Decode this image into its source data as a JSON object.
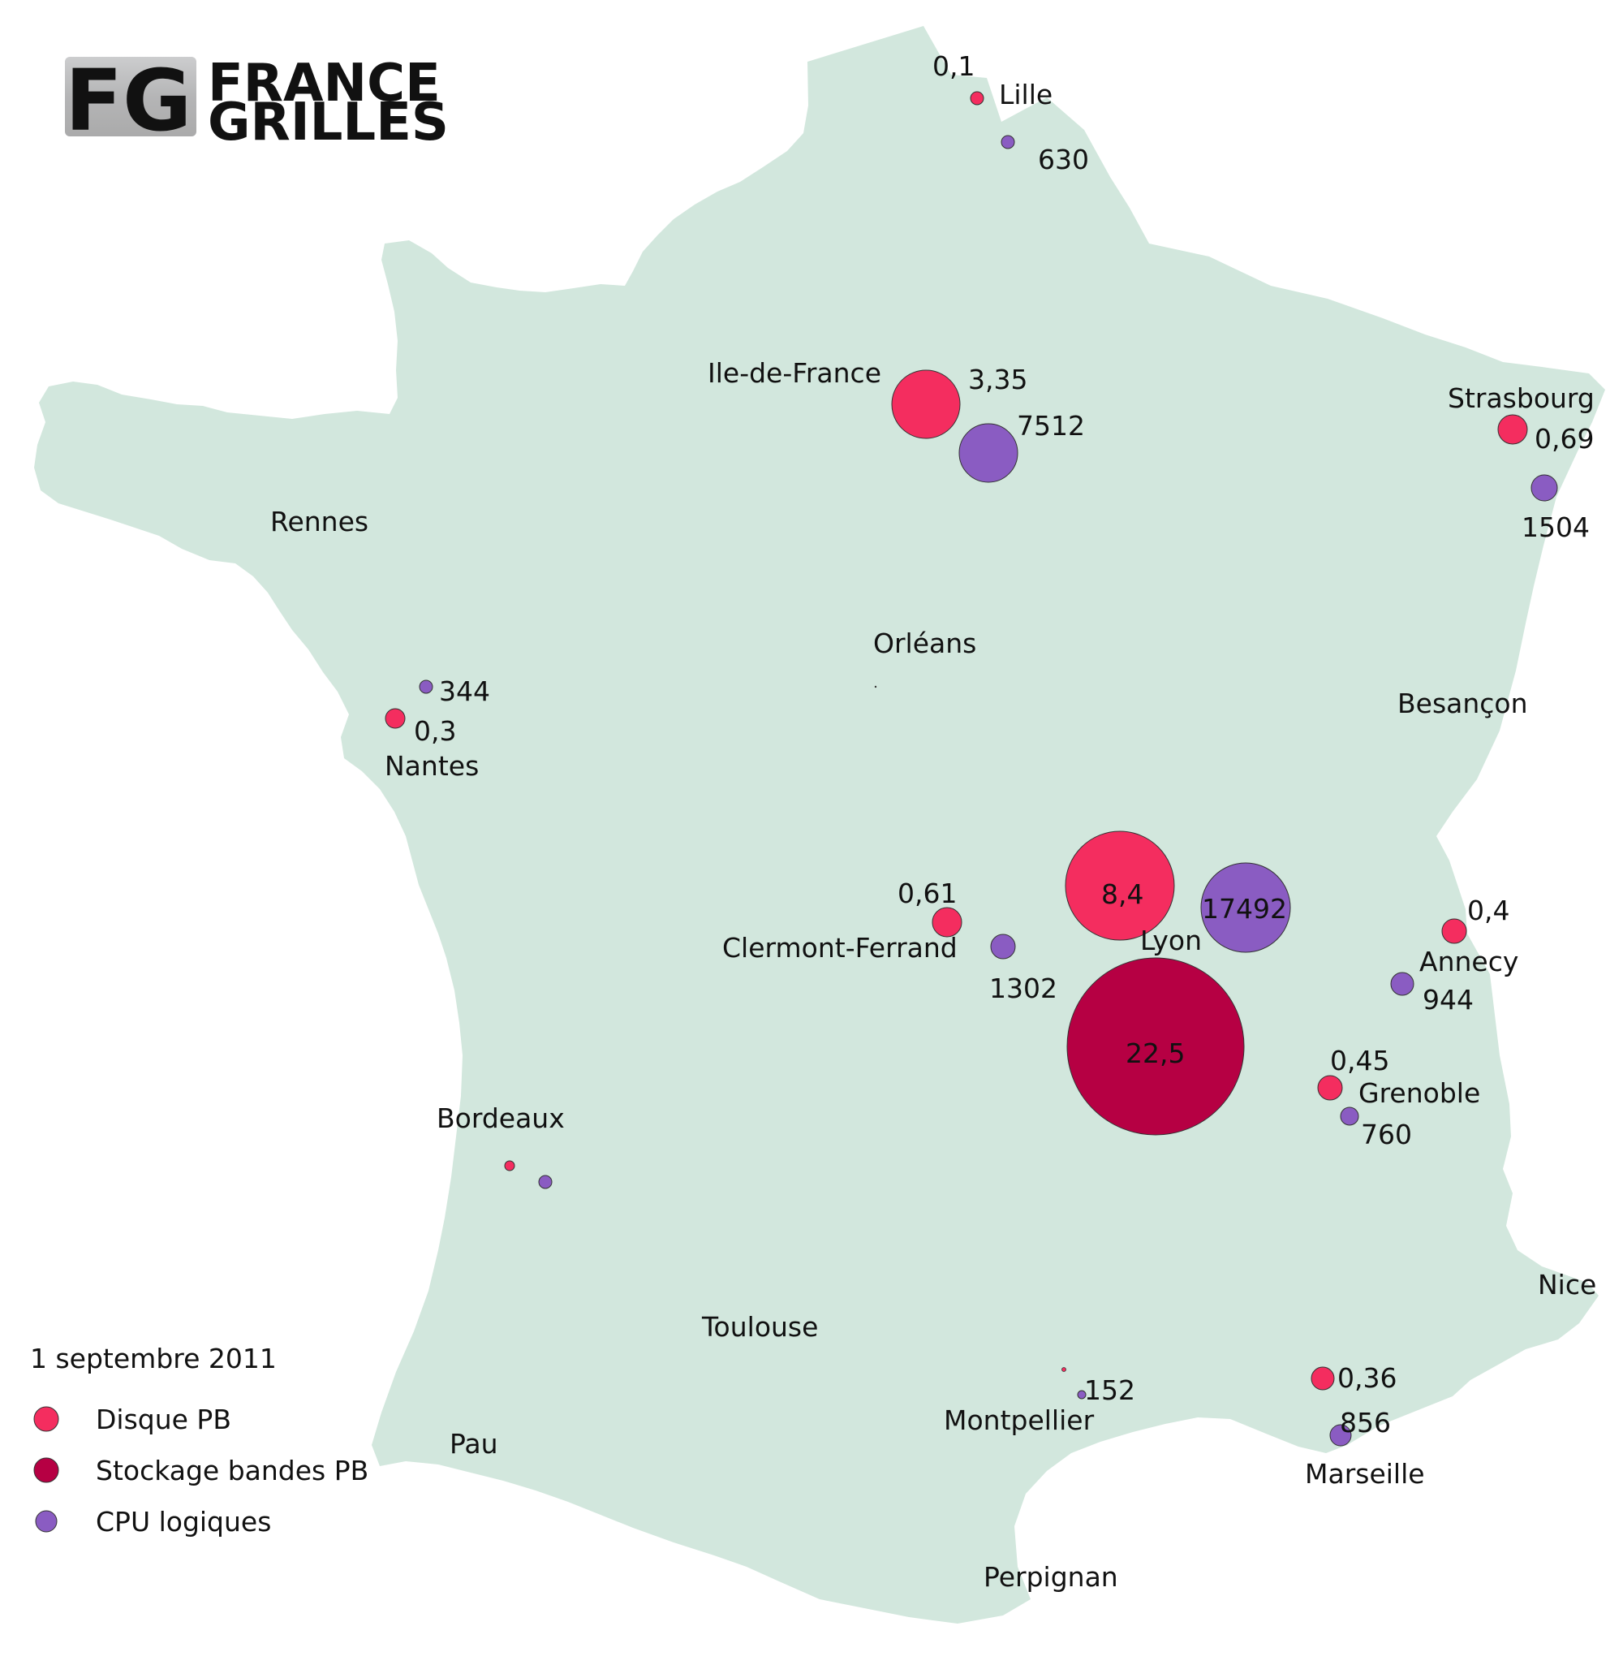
{
  "logo": {
    "monogram": "FG",
    "line1": "FRANCE",
    "line2": "GRILLES"
  },
  "date": "1 septembre 2011",
  "colors": {
    "land": "#d2e7dd",
    "disk": "#f42d5f",
    "tape": "#b60043",
    "cpu": "#8a5cc2"
  },
  "legend": [
    {
      "label": "Disque PB",
      "color": "#f42d5f"
    },
    {
      "label": "Stockage bandes PB",
      "color": "#b60043"
    },
    {
      "label": "CPU logiques",
      "color": "#8a5cc2"
    }
  ],
  "cities": [
    "Lille",
    "Ile-de-France",
    "Strasbourg",
    "Rennes",
    "Orléans",
    "Besançon",
    "Nantes",
    "Clermont-Ferrand",
    "Lyon",
    "Annecy",
    "Grenoble",
    "Bordeaux",
    "Toulouse",
    "Nice",
    "Montpellier",
    "Pau",
    "Marseille",
    "Perpignan"
  ],
  "chart_data": {
    "type": "proportional-symbol-map",
    "series": [
      {
        "name": "Disque PB",
        "values": [
          {
            "site": "Lille",
            "value": 0.1,
            "label": "0,1"
          },
          {
            "site": "Ile-de-France",
            "value": 3.35,
            "label": "3,35"
          },
          {
            "site": "Strasbourg",
            "value": 0.69,
            "label": "0,69"
          },
          {
            "site": "Nantes",
            "value": 0.3,
            "label": "0,3"
          },
          {
            "site": "Clermont-Ferrand",
            "value": 0.61,
            "label": "0,61"
          },
          {
            "site": "Lyon",
            "value": 8.4,
            "label": "8,4"
          },
          {
            "site": "Annecy",
            "value": 0.4,
            "label": "0,4"
          },
          {
            "site": "Grenoble",
            "value": 0.45,
            "label": "0,45"
          },
          {
            "site": "Marseille",
            "value": 0.36,
            "label": "0,36"
          },
          {
            "site": "Bordeaux",
            "value": null,
            "label": ""
          },
          {
            "site": "Montpellier",
            "value": null,
            "label": ""
          }
        ]
      },
      {
        "name": "Stockage bandes PB",
        "values": [
          {
            "site": "Lyon",
            "value": 22.5,
            "label": "22,5"
          }
        ]
      },
      {
        "name": "CPU logiques",
        "values": [
          {
            "site": "Lille",
            "value": 630,
            "label": "630"
          },
          {
            "site": "Ile-de-France",
            "value": 7512,
            "label": "7512"
          },
          {
            "site": "Strasbourg",
            "value": 1504,
            "label": "1504"
          },
          {
            "site": "Nantes",
            "value": 344,
            "label": "344"
          },
          {
            "site": "Clermont-Ferrand",
            "value": 1302,
            "label": "1302"
          },
          {
            "site": "Lyon",
            "value": 17492,
            "label": "17492"
          },
          {
            "site": "Annecy",
            "value": 944,
            "label": "944"
          },
          {
            "site": "Grenoble",
            "value": 760,
            "label": "760"
          },
          {
            "site": "Montpellier",
            "value": 152,
            "label": "152"
          },
          {
            "site": "Marseille",
            "value": 856,
            "label": "856"
          },
          {
            "site": "Bordeaux",
            "value": null,
            "label": ""
          }
        ]
      }
    ]
  }
}
